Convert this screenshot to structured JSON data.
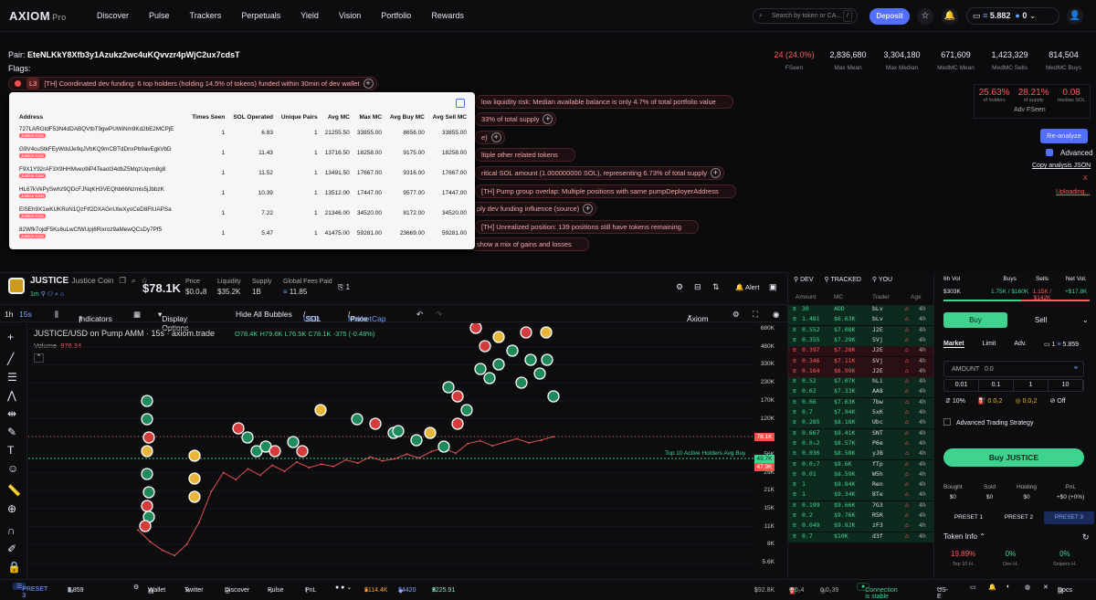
{
  "nav": {
    "logo": "AXIOM",
    "logo_sub": "Pro",
    "links": [
      "Discover",
      "Pulse",
      "Trackers",
      "Perpetuals",
      "Yield",
      "Vision",
      "Portfolio",
      "Rewards"
    ],
    "search_placeholder": "Search by token or CA...",
    "search_key": "/",
    "deposit_label": "Deposit",
    "wallet_balance": "5.882",
    "wallet_count": "0"
  },
  "analysis": {
    "pair_label": "Pair:",
    "pair_address": "EteNLKkY8Xfb3y1Azukz2wc4uKQvvzr4pWjC2ux7cdsT",
    "flags_label": "Flags:",
    "flags": [
      {
        "num": "L3",
        "text": "[TH] Coordinated dev funding: 6 top holders (holding 14.5% of tokens) funded within 30min of dev wallet"
      },
      {
        "text": "low liquidity risk: Median available balance is only 4.7% of total portfolio value"
      },
      {
        "text": "33% of total supply"
      },
      {
        "text": "e)"
      },
      {
        "text": "ltiple other related tokens"
      },
      {
        "text": "ritical SOL amount (1.000000000 SOL), representing 6.73% of total supply"
      },
      {
        "text": "[TH] Pump group overlap: Multiple positions with same pumpDeployerAddress"
      },
      {
        "text": "ply dev funding influence (source)"
      },
      {
        "text": "[TH] Unrealized position: 139 positions still have tokens remaining"
      },
      {
        "text": "show a mix of gains and losses"
      }
    ],
    "stats": [
      {
        "value": "24 (24.0%)",
        "label": "FSeen",
        "color": "#ff5a5a"
      },
      {
        "value": "2,836,680",
        "label": "Max Mean"
      },
      {
        "value": "3,304,180",
        "label": "Max Median"
      },
      {
        "value": "671,609",
        "label": "MedMC Mean"
      },
      {
        "value": "1,423,329",
        "label": "MedMC Sells"
      },
      {
        "value": "814,504",
        "label": "MedMC Buys"
      }
    ],
    "holders": [
      {
        "value": "25.63%",
        "label": "of holders"
      },
      {
        "value": "28.21%",
        "label": "of supply"
      },
      {
        "value": "0.08",
        "label": "median SOL"
      }
    ],
    "adv_fseen": "Adv FSeen",
    "reanalyze": "Re-analyze",
    "advanced": "Advanced",
    "copy_json": "Copy analysis JSON",
    "x_link": "X",
    "uploading": "Uploading..."
  },
  "popup": {
    "columns": [
      "Address",
      "Times Seen",
      "SOL Operated",
      "Unique Pairs",
      "Avg MC",
      "Max MC",
      "Avg Buy MC",
      "Avg Sell MC"
    ],
    "tag": "Justice Coin",
    "rows": [
      [
        "727LARGtdF53N4dDABQVtbT9gwPUWiNm9Kd2bE2MCPjE",
        "1",
        "6.83",
        "1",
        "21255.50",
        "33855.00",
        "8656.00",
        "33855.00"
      ],
      [
        "G9V4cuStkFEyWddJe9qJVbKQ9mCBTdDnxPb9avEgkVbD",
        "1",
        "11.43",
        "1",
        "13716.50",
        "18258.00",
        "9175.00",
        "18258.00"
      ],
      [
        "F9X1Y92rAF3X9HHMveo9iP4Teaot34dbZ5MqzUqvm8g8",
        "1",
        "11.52",
        "1",
        "13491.50",
        "17667.00",
        "9316.00",
        "17667.00"
      ],
      [
        "HL67kVkPySwhz9QDcFJNqKH3VEQhb66Nzmis5jJbbzK",
        "1",
        "10.39",
        "1",
        "13512.00",
        "17447.00",
        "9577.00",
        "17447.00"
      ],
      [
        "EiSEh9X1wKUKRoN1QzFtf2DXAGnUtwXyoCeD8FtUAPSa",
        "1",
        "7.22",
        "1",
        "21346.00",
        "34520.00",
        "8172.00",
        "34520.00"
      ],
      [
        "82Wfk7ojdF5Ks6uLwCfWUpj6Rixroz9aMewQCsDy7Pf5",
        "1",
        "5.47",
        "1",
        "41475.00",
        "59281.00",
        "23669.00",
        "59281.00"
      ]
    ]
  },
  "token": {
    "symbol": "JUSTICE",
    "name": "Justice Coin",
    "age": "1m",
    "price_mc": "$78.1K",
    "price_label": "Price",
    "price": "$0.0₄8",
    "liquidity_label": "Liquidity",
    "liquidity": "$35.2K",
    "supply_label": "Supply",
    "supply": "1B",
    "fees_label": "Global Fees Paid",
    "fees": "11.85",
    "holders_count": "1",
    "alert": "Alert"
  },
  "chart_toolbar": {
    "interval": "1h",
    "interval2": "15s",
    "indicators": "Indicators",
    "display": "Display Options",
    "bubbles": "Hide All Bubbles",
    "usd": "USD",
    "sol": "SOL",
    "mc": "MarketCap",
    "price": "Price",
    "source": "Axiom"
  },
  "chart": {
    "title": "JUSTICE/USD on Pump AMM · 15s · axiom.trade",
    "ohlc": "O78.4K H79.6K L76.5K C78.1K -375 (-0.48%)",
    "volume_label": "Volume",
    "volume": "976.34",
    "marker_label": "Top 10 Active Holders Avg Buy",
    "current_price": "78.1K",
    "avg_buy": "49.7K",
    "avg_buy2": "47.9K",
    "yticks": [
      "680K",
      "480K",
      "330K",
      "230K",
      "170K",
      "120K",
      "82K",
      "56K",
      "29K",
      "21K",
      "15K",
      "11K",
      "8K",
      "5.6K"
    ]
  },
  "chart_data": {
    "type": "line",
    "title": "JUSTICE/USD on Pump AMM · 15s · axiom.trade",
    "xlabel": "",
    "ylabel": "",
    "y_scale": "log",
    "ylim": [
      5600,
      680000
    ],
    "series": [
      {
        "values": [
          12000,
          9500,
          8000,
          7200,
          9000,
          14000,
          26000,
          38000,
          33000,
          41000,
          36000,
          44000,
          39000,
          47000,
          42000,
          45000,
          43000,
          49000,
          46000,
          52000,
          48000,
          50000,
          55000,
          51000,
          58000,
          62000,
          56000,
          68000,
          72000,
          65000,
          70000,
          75000,
          69000,
          73000,
          78100
        ]
      }
    ],
    "annotations": [
      "Top 10 Active Holders Avg Buy"
    ]
  },
  "trades": {
    "tabs": [
      "DEV",
      "TRACKED",
      "YOU"
    ],
    "columns": [
      "Amount",
      "MC",
      "Trader",
      "Age"
    ],
    "rows": [
      {
        "amt": "30",
        "mc": "ADD",
        "tr": "bLv",
        "age": "4h",
        "side": "buy"
      },
      {
        "amt": "1.481",
        "mc": "$6.63K",
        "tr": "bLv",
        "age": "4h",
        "side": "buy"
      },
      {
        "amt": "0.552",
        "mc": "$7.08K",
        "tr": "J2E",
        "age": "4h",
        "side": "buy"
      },
      {
        "amt": "0.355",
        "mc": "$7.29K",
        "tr": "SVj",
        "age": "4h",
        "side": "buy"
      },
      {
        "amt": "0.397",
        "mc": "$7.28K",
        "tr": "J2E",
        "age": "4h",
        "side": "sell"
      },
      {
        "amt": "0.346",
        "mc": "$7.11K",
        "tr": "SVj",
        "age": "4h",
        "side": "sell"
      },
      {
        "amt": "0.164",
        "mc": "$6.99K",
        "tr": "J2E",
        "age": "4h",
        "side": "sell"
      },
      {
        "amt": "0.52",
        "mc": "$7.07K",
        "tr": "hLi",
        "age": "4h",
        "side": "buy"
      },
      {
        "amt": "0.62",
        "mc": "$7.33K",
        "tr": "AA8",
        "age": "4h",
        "side": "buy"
      },
      {
        "amt": "0.66",
        "mc": "$7.63K",
        "tr": "7bw",
        "age": "4h",
        "side": "buy"
      },
      {
        "amt": "0.7",
        "mc": "$7.94K",
        "tr": "5xK",
        "age": "4h",
        "side": "buy"
      },
      {
        "amt": "0.285",
        "mc": "$8.18K",
        "tr": "Ubc",
        "age": "4h",
        "side": "buy"
      },
      {
        "amt": "0.667",
        "mc": "$8.41K",
        "tr": "SNT",
        "age": "4h",
        "side": "buy"
      },
      {
        "amt": "0.0₂2",
        "mc": "$8.57K",
        "tr": "P6e",
        "age": "4h",
        "side": "buy"
      },
      {
        "amt": "0.036",
        "mc": "$8.58K",
        "tr": "yJB",
        "age": "4h",
        "side": "buy"
      },
      {
        "amt": "0.0₂7",
        "mc": "$8.6K",
        "tr": "fTp",
        "age": "4h",
        "side": "buy"
      },
      {
        "amt": "0.01",
        "mc": "$8.59K",
        "tr": "W5h",
        "age": "4h",
        "side": "buy"
      },
      {
        "amt": "1",
        "mc": "$8.84K",
        "tr": "Ren",
        "age": "4h",
        "side": "buy"
      },
      {
        "amt": "1",
        "mc": "$9.34K",
        "tr": "BTe",
        "age": "4h",
        "side": "buy"
      },
      {
        "amt": "0.199",
        "mc": "$9.66K",
        "tr": "7G3",
        "age": "4h",
        "side": "buy"
      },
      {
        "amt": "0.2",
        "mc": "$9.76K",
        "tr": "R5R",
        "age": "4h",
        "side": "buy"
      },
      {
        "amt": "0.049",
        "mc": "$9.82K",
        "tr": "zF3",
        "age": "4h",
        "side": "buy"
      },
      {
        "amt": "0.7",
        "mc": "$10K",
        "tr": "d3f",
        "age": "4h",
        "side": "buy"
      }
    ]
  },
  "order": {
    "vol_label": "6h Vol",
    "vol": "$303K",
    "buys_label": "Buys",
    "buys": "1.75K / $160K",
    "sells_label": "Sells",
    "sells": "1.15K / $142K",
    "net_label": "Net Vol.",
    "net": "+$17.8K",
    "buy_tab": "Buy",
    "sell_tab": "Sell",
    "tabs": [
      "Market",
      "Limit",
      "Adv."
    ],
    "wallet_count": "1",
    "wallet_bal": "5.859",
    "amount_label": "AMOUNT",
    "amount_value": "0.0",
    "presets": [
      "0.01",
      "0.1",
      "1",
      "10"
    ],
    "slippage": "10%",
    "priority": "0.0₁2",
    "bribe": "0.0₁2",
    "mev": "Off",
    "ats": "Advanced Trading Strategy",
    "buy_button": "Buy JUSTICE",
    "pnl_cols": [
      {
        "label": "Bought",
        "value": "$0"
      },
      {
        "label": "Sold",
        "value": "$0"
      },
      {
        "label": "Holding",
        "value": "$0"
      },
      {
        "label": "PnL",
        "value": "+$0 (+0%)"
      }
    ],
    "preset_tabs": [
      "PRESET 1",
      "PRESET 2",
      "PRESET 3"
    ],
    "token_info": "Token Info",
    "info": [
      {
        "value": "19.89%",
        "label": "Top 10 H."
      },
      {
        "value": "0%",
        "label": "Dev H."
      },
      {
        "value": "0%",
        "label": "Snipers H."
      }
    ]
  },
  "bottom": {
    "preset": "PRESET 3",
    "wallets": "1",
    "bal": "5.859",
    "wallet": "Wallet",
    "twitter": "Twitter",
    "discover": "Discover",
    "pulse": "Pulse",
    "pnl": "PnL",
    "btc": "$114.4K",
    "eth": "$4420",
    "sol": "$225.91",
    "mc": "$92.8K",
    "fee1": "0.0₂4",
    "fee2": "0.0₂39",
    "conn": "Connection is stable",
    "region": "US-E",
    "docs": "Docs"
  }
}
